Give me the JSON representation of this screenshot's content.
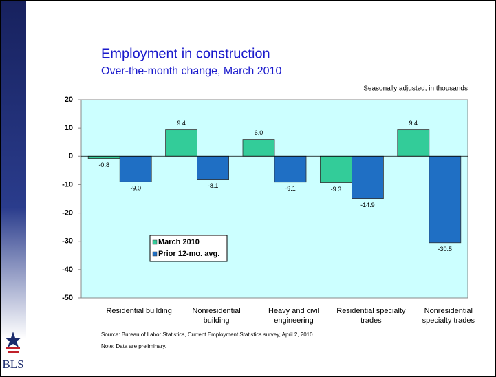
{
  "chart_data": {
    "type": "bar",
    "title": "Employment in construction",
    "subtitle": "Over-the-month change, March 2010",
    "units_note": "Seasonally adjusted, in thousands",
    "categories": [
      "Residential building",
      "Nonresidential building",
      "Heavy and civil engineering",
      "Residential specialty trades",
      "Nonresidential specialty trades"
    ],
    "series": [
      {
        "name": "March 2010",
        "color": "#33cc99",
        "values": [
          -0.8,
          9.4,
          6.0,
          -9.3,
          9.4
        ],
        "value_labels": [
          "-0.8",
          "9.4",
          "6.0",
          "-9.3",
          "9.4"
        ]
      },
      {
        "name": "Prior 12-mo. avg.",
        "color": "#1f6fc4",
        "values": [
          -9.0,
          -8.1,
          -9.1,
          -14.9,
          -30.5
        ],
        "value_labels": [
          "-9.0",
          "-8.1",
          "-9.1",
          "-14.9",
          "-30.5"
        ]
      }
    ],
    "ylim": [
      -50,
      20
    ],
    "yticks": [
      20,
      10,
      0,
      -10,
      -20,
      -30,
      -40,
      -50
    ],
    "legend": "lower left",
    "source": "Source:  Bureau of Labor Statistics, Current Employment Statistics survey, April 2, 2010.",
    "note": "Note: Data are preliminary.",
    "logo": "BLS"
  }
}
